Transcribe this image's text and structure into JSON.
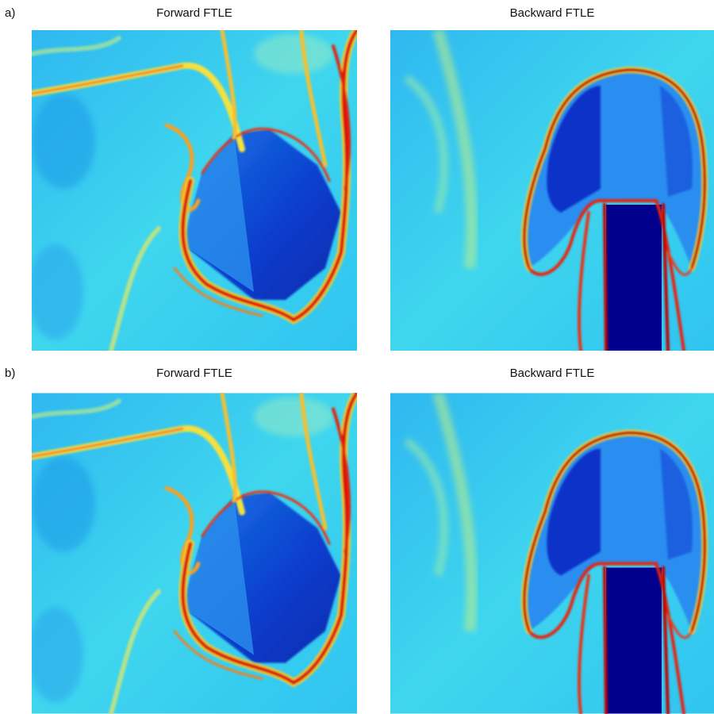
{
  "panels": [
    {
      "label": "a)",
      "plots": [
        {
          "title": "Forward FTLE"
        },
        {
          "title": "Backward FTLE"
        }
      ]
    },
    {
      "label": "b)",
      "plots": [
        {
          "title": "Forward FTLE"
        },
        {
          "title": "Backward FTLE"
        }
      ]
    }
  ]
}
